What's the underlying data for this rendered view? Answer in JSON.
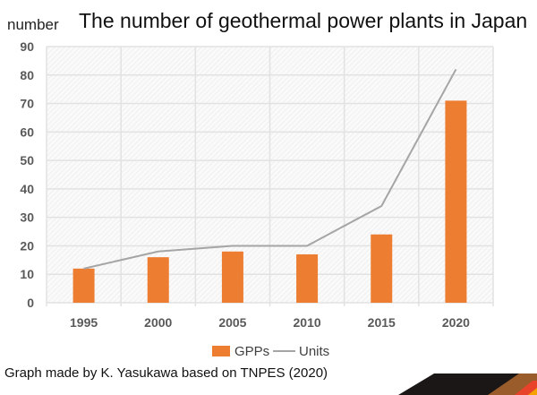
{
  "chart_data": {
    "type": "bar",
    "title": "The number of geothermal power plants in Japan",
    "ylabel": "number",
    "xlabel": "",
    "categories": [
      "1995",
      "2000",
      "2005",
      "2010",
      "2015",
      "2020"
    ],
    "series": [
      {
        "name": "GPPs",
        "type": "bar",
        "color": "#ED7D31",
        "values": [
          12,
          16,
          18,
          17,
          24,
          71
        ]
      },
      {
        "name": "Units",
        "type": "line",
        "color": "#A5A5A5",
        "values": [
          12,
          18,
          20,
          20,
          34,
          82
        ]
      }
    ],
    "ylim": [
      0,
      90
    ],
    "yticks": [
      0,
      10,
      20,
      30,
      40,
      50,
      60,
      70,
      80,
      90
    ],
    "grid": true,
    "legend": "bottom"
  },
  "footer": "Graph made by K. Yasukawa based on TNPES (2020)"
}
